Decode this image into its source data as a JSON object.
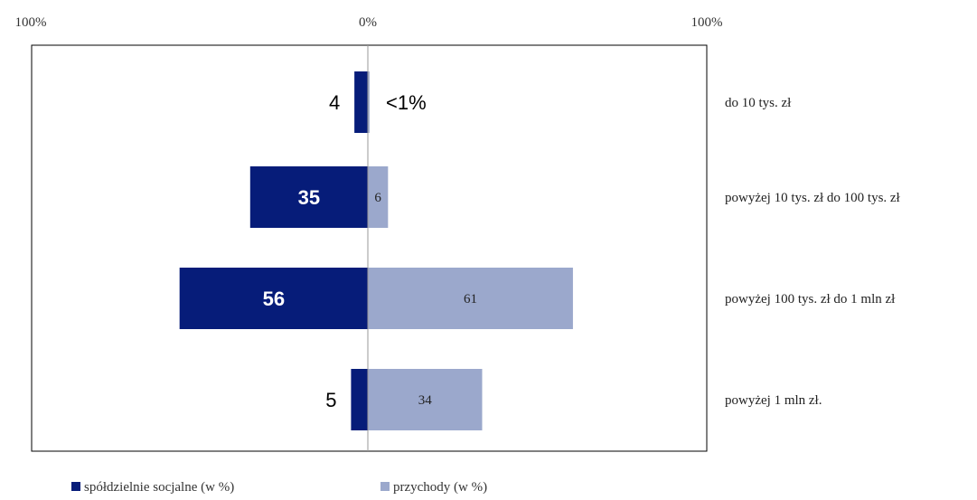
{
  "chart_data": {
    "type": "bar",
    "orientation": "horizontal-diverging",
    "top_axis_labels": [
      "100%",
      "0%",
      "100%"
    ],
    "categories": [
      "do 10 tys. zł",
      "powyżej 10 tys. zł do 100 tys. zł",
      "powyżej 100 tys. zł do 1 mln zł",
      "powyżej 1 mln zł."
    ],
    "series": [
      {
        "name": "spółdzielnie socjalne (w %)",
        "values": [
          4,
          35,
          56,
          5
        ],
        "labels": [
          "4",
          "35",
          "56",
          "5"
        ],
        "color": "#061C79",
        "direction": "left"
      },
      {
        "name": "przychody (w %)",
        "values": [
          0.5,
          6,
          61,
          34
        ],
        "labels": [
          "<1%",
          "6",
          "61",
          "34"
        ],
        "color": "#9BA8CC",
        "direction": "right"
      }
    ],
    "xlim": [
      -100,
      100
    ],
    "grid": false,
    "legend_position": "bottom-left"
  }
}
